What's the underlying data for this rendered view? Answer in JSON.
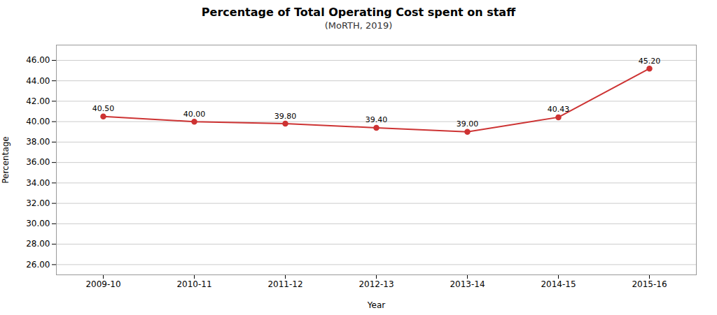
{
  "chart_data": {
    "type": "line",
    "title": "Percentage of Total Operating Cost spent on staff",
    "subtitle": "(MoRTH, 2019)",
    "xlabel": "Year",
    "ylabel": "Percentage",
    "categories": [
      "2009-10",
      "2010-11",
      "2011-12",
      "2012-13",
      "2013-14",
      "2014-15",
      "2015-16"
    ],
    "values": [
      40.5,
      40.0,
      39.8,
      39.4,
      39.0,
      40.43,
      45.2
    ],
    "value_labels": [
      "40.50",
      "40.00",
      "39.80",
      "39.40",
      "39.00",
      "40.43",
      "45.20"
    ],
    "data_labels": true,
    "color": "#cd3333",
    "marker": "circle",
    "ylim": [
      25.0,
      47.5
    ],
    "yticks": [
      {
        "value": 26,
        "label": "26.00"
      },
      {
        "value": 28,
        "label": "28.00"
      },
      {
        "value": 30,
        "label": "30.00"
      },
      {
        "value": 32,
        "label": "32.00"
      },
      {
        "value": 34,
        "label": "34.00"
      },
      {
        "value": 36,
        "label": "36.00"
      },
      {
        "value": 38,
        "label": "38.00"
      },
      {
        "value": 40,
        "label": "40.00"
      },
      {
        "value": 42,
        "label": "42.00"
      },
      {
        "value": 44,
        "label": "44.00"
      },
      {
        "value": 46,
        "label": "46.00"
      }
    ],
    "grid": true
  }
}
